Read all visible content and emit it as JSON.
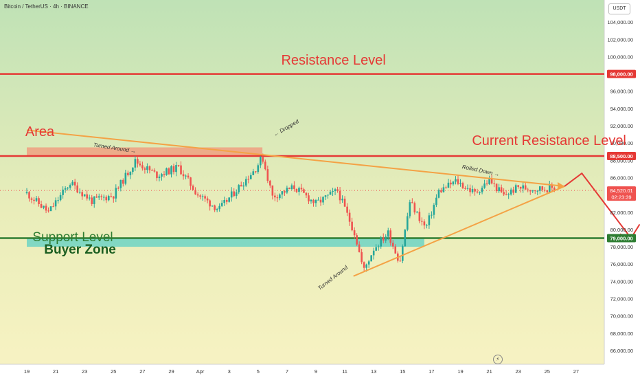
{
  "header": {
    "title": "Bitcoin / TetherUS · 4h · BINANCE"
  },
  "currency_button": "USDT",
  "chart_data": {
    "type": "candlestick",
    "title": "Bitcoin / TetherUS · 4h · BINANCE",
    "ylim": [
      64500,
      106000
    ],
    "y_ticks": [
      66000,
      68000,
      70000,
      72000,
      74000,
      76000,
      78000,
      80000,
      82000,
      84000,
      86000,
      88000,
      90000,
      92000,
      94000,
      96000,
      98000,
      100000,
      102000,
      104000
    ],
    "y_tick_labels": [
      "66,000.00",
      "68,000.00",
      "70,000.00",
      "72,000.00",
      "74,000.00",
      "76,000.00",
      "78,000.00",
      "80,000.00",
      "82,000.00",
      "84,000.00",
      "86,000.00",
      "88,000.00",
      "90,000.00",
      "92,000.00",
      "94,000.00",
      "96,000.00",
      "98,000.00",
      "100,000.00",
      "102,000.00",
      "104,000.00"
    ],
    "x_ticks": [
      "19",
      "21",
      "23",
      "25",
      "27",
      "29",
      "Apr",
      "3",
      "5",
      "7",
      "9",
      "11",
      "13",
      "15",
      "17",
      "19",
      "21",
      "23",
      "25",
      "27"
    ],
    "price_path": [
      [
        0,
        84200
      ],
      [
        1.5,
        82000
      ],
      [
        3,
        85400
      ],
      [
        4.5,
        83300
      ],
      [
        6,
        84000
      ],
      [
        7.5,
        87900
      ],
      [
        9,
        86300
      ],
      [
        10.5,
        87200
      ],
      [
        11.8,
        84100
      ],
      [
        13.3,
        82300
      ],
      [
        14.6,
        84800
      ],
      [
        15.8,
        87000
      ],
      [
        16.3,
        88400
      ],
      [
        17,
        83800
      ],
      [
        18.5,
        84900
      ],
      [
        20,
        83000
      ],
      [
        21.5,
        84500
      ],
      [
        22.7,
        79500
      ],
      [
        23.3,
        75200
      ],
      [
        24,
        77800
      ],
      [
        25,
        79600
      ],
      [
        25.8,
        76200
      ],
      [
        26.5,
        83200
      ],
      [
        27.6,
        80100
      ],
      [
        28.5,
        84400
      ],
      [
        29.7,
        85600
      ],
      [
        31,
        84200
      ],
      [
        32,
        85700
      ],
      [
        33,
        83900
      ],
      [
        34,
        84900
      ],
      [
        35,
        84700
      ],
      [
        36.6,
        84800
      ]
    ],
    "last_price": "84,520.01",
    "countdown": "02:23:39",
    "price_levels": [
      {
        "name": "Resistance Level",
        "value": 98000,
        "label": "98,000.00",
        "color": "#e53935"
      },
      {
        "name": "Current Resistance Level",
        "value": 88500,
        "label": "88,500.00",
        "color": "#e53935"
      },
      {
        "name": "Support Level",
        "value": 79000,
        "label": "79,000.00",
        "color": "#2e7d32"
      }
    ],
    "zones": [
      {
        "label": "Area",
        "y": [
          88500,
          89500
        ],
        "x": [
          0,
          16.3
        ],
        "color": "#f0a080"
      },
      {
        "label": "Buyer Zone",
        "y": [
          78000,
          79000
        ],
        "x": [
          0,
          27.5
        ],
        "color": "#6fd4c4"
      }
    ],
    "trendlines": [
      {
        "from": [
          0,
          91500
        ],
        "to": [
          37.2,
          85000
        ],
        "color": "#f4a245"
      },
      {
        "from": [
          22.6,
          74600
        ],
        "to": [
          37.2,
          85000
        ],
        "color": "#f4a245"
      }
    ],
    "projection": {
      "path": [
        [
          37.2,
          85000
        ],
        [
          38.4,
          86500
        ],
        [
          41.8,
          79000
        ],
        [
          42.4,
          80600
        ]
      ],
      "color": "#e53935"
    },
    "annotations": [
      {
        "text": "Resistance Level",
        "x": 17.6,
        "y": 100400,
        "style": "big"
      },
      {
        "text": "Current Resistance Level",
        "x": 30.8,
        "y": 91100,
        "style": "big"
      },
      {
        "text": "Area",
        "x": -0.1,
        "y": 92200,
        "style": "big"
      },
      {
        "text": "Turned Around →",
        "x": 4.6,
        "y": 90200,
        "style": "small",
        "rotate": 9
      },
      {
        "text": "← Dropped",
        "x": 17.1,
        "y": 91300,
        "style": "small",
        "rotate": -30
      },
      {
        "text": "Rolled Down →",
        "x": 30.1,
        "y": 87600,
        "style": "small",
        "rotate": 12
      },
      {
        "text": "Turned Around",
        "x": 20.2,
        "y": 73500,
        "style": "small",
        "rotate": -38
      },
      {
        "text": "Support Level",
        "x": 0.4,
        "y": 79900,
        "style": "green"
      },
      {
        "text": "Buyer Zone",
        "x": 1.2,
        "y": 78500,
        "style": "dark"
      }
    ]
  }
}
